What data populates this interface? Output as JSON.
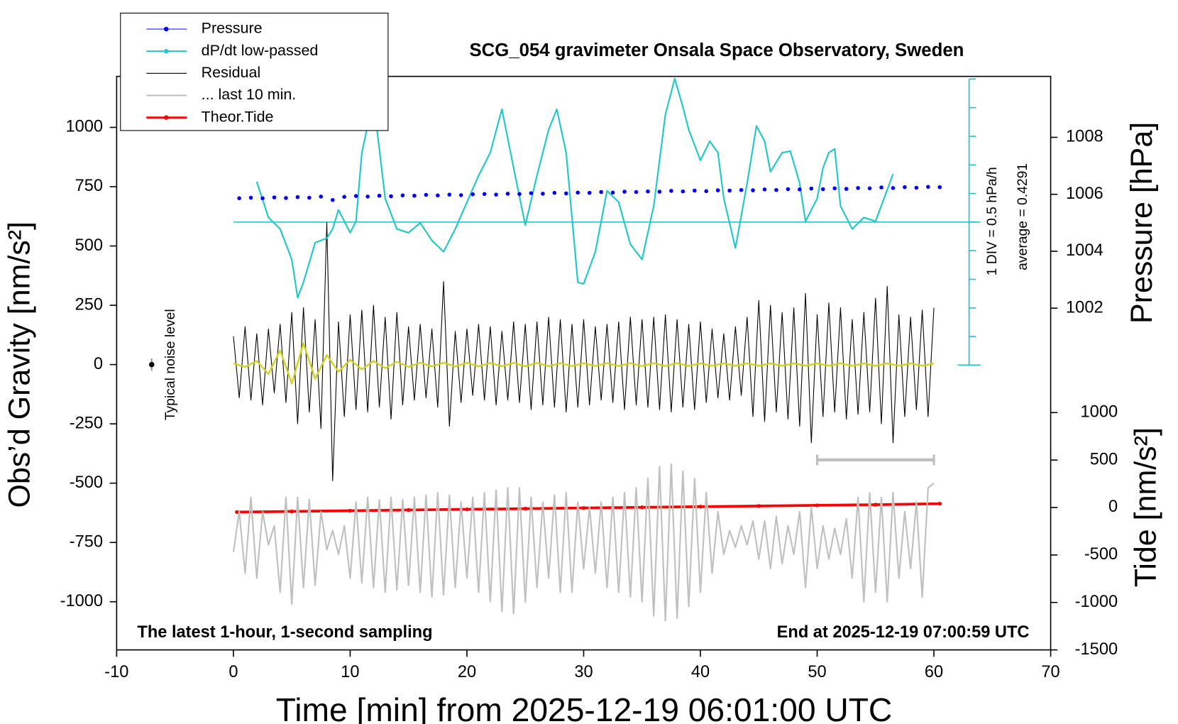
{
  "chart_data": {
    "type": "line",
    "title": "SCG_054 gravimeter Onsala Space Observatory, Sweden",
    "xlabel": "Time [min] from 2025-12-19 06:01:00 UTC",
    "ylabel": "Obs’d Gravity [nm/s²]",
    "y2label": "Pressure [hPa]",
    "y3label": "Tide [nm/s²]",
    "footer_left": "The latest 1-hour, 1-second sampling",
    "footer_right": "End at 2025-12-19 07:00:59 UTC",
    "xlim": [
      -10,
      70
    ],
    "xticks": [
      -10,
      0,
      10,
      20,
      30,
      40,
      50,
      60,
      70
    ],
    "ylim": [
      -1203,
      1215
    ],
    "yticks": [
      -1000,
      -750,
      -500,
      -250,
      0,
      250,
      500,
      750,
      1000
    ],
    "y2lim": [
      990,
      1010.14
    ],
    "y2ticks": [
      1002,
      1004,
      1006,
      1008
    ],
    "y3lim": [
      -1500,
      4542
    ],
    "y3ticks": [
      -1500,
      -1000,
      -500,
      0,
      500,
      1000
    ],
    "y4lim": [
      -7.05,
      2.976
    ],
    "y4ticks": [
      -2.0709,
      -1.5709,
      -1.0709,
      -0.5709,
      -0.0709,
      0.4291,
      0.9291,
      1.4291,
      1.9291,
      2.4291,
      2.9291
    ],
    "y4_color": "#20c0c0",
    "average": 0.4291,
    "average_label": "average = 0.4291",
    "div_label": "1 DIV = 0.5 hPa/h",
    "noise_level": {
      "label": "Typical noise level",
      "x": -7,
      "value": 0,
      "error": 26
    },
    "scale_bar": {
      "x": [
        50,
        60
      ],
      "value": -402,
      "color": "#c0c0c0"
    },
    "legend": "upper left",
    "series": [
      {
        "name": "Pressure",
        "color": "#0000ff",
        "style": "points",
        "marker": true,
        "axis": "y2",
        "x": [
          0.5,
          1.5,
          2.5,
          3.5,
          4.5,
          5.5,
          6.5,
          7.5,
          8.5,
          9.5,
          10.5,
          11.5,
          12.5,
          13.5,
          14.5,
          15.5,
          16.5,
          17.5,
          18.5,
          19.5,
          20.5,
          21.5,
          22.5,
          23.5,
          24.5,
          25.5,
          26.5,
          27.5,
          28.5,
          29.5,
          30.5,
          31.5,
          32.5,
          33.5,
          34.5,
          35.5,
          36.5,
          37.5,
          38.5,
          39.5,
          40.5,
          41.5,
          42.5,
          43.5,
          44.5,
          45.5,
          46.5,
          47.5,
          48.5,
          49.5,
          50.5,
          51.5,
          52.5,
          53.5,
          54.5,
          55.5,
          56.5,
          57.5,
          58.5,
          59.5,
          60.5
        ],
        "values": [
          1005.86,
          1005.88,
          1005.86,
          1005.89,
          1005.87,
          1005.9,
          1005.88,
          1005.92,
          1005.8,
          1005.91,
          1005.94,
          1005.92,
          1005.95,
          1005.93,
          1005.96,
          1005.95,
          1005.98,
          1005.96,
          1005.99,
          1005.97,
          1006.0,
          1006.01,
          1005.99,
          1006.02,
          1006.01,
          1006.04,
          1006.02,
          1006.05,
          1006.03,
          1006.06,
          1006.05,
          1006.08,
          1006.06,
          1006.09,
          1006.08,
          1006.1,
          1006.09,
          1006.12,
          1006.1,
          1006.13,
          1006.11,
          1006.14,
          1006.13,
          1006.15,
          1006.14,
          1006.17,
          1006.15,
          1006.18,
          1006.17,
          1006.2,
          1006.18,
          1006.21,
          1006.19,
          1006.22,
          1006.21,
          1006.24,
          1006.22,
          1006.25,
          1006.23,
          1006.26,
          1006.25
        ]
      },
      {
        "name": "dP/dt low-passed",
        "color": "#20c8c8",
        "style": "line",
        "marker": true,
        "axis": "y4",
        "x": [
          2,
          3,
          4,
          5,
          5.5,
          6,
          7,
          8,
          8.5,
          9,
          10,
          10.5,
          11,
          11.7,
          12.3,
          13,
          14,
          15,
          16,
          17,
          18,
          19,
          20,
          21,
          22,
          23,
          24,
          25,
          26,
          27,
          27.7,
          28.5,
          29.5,
          30,
          31,
          32,
          33,
          34,
          35,
          36,
          37,
          37.8,
          38.5,
          39,
          40,
          40.8,
          41.5,
          42,
          43,
          44,
          44.8,
          45.5,
          46,
          47,
          47.7,
          48.5,
          49,
          50,
          50.5,
          51,
          51.5,
          52,
          53,
          54,
          55,
          56.5
        ],
        "values": [
          1.136,
          0.509,
          0.309,
          -0.224,
          -0.891,
          -0.624,
          0.069,
          0.149,
          0.309,
          0.642,
          0.242,
          0.442,
          1.642,
          2.309,
          2.042,
          0.842,
          0.309,
          0.242,
          0.416,
          0.109,
          -0.091,
          0.309,
          0.776,
          1.242,
          1.642,
          2.402,
          1.376,
          0.376,
          1.242,
          2.042,
          2.402,
          1.642,
          -0.624,
          -0.651,
          -0.091,
          0.976,
          0.776,
          0.042,
          -0.224,
          0.709,
          2.309,
          2.936,
          2.442,
          2.042,
          1.509,
          1.842,
          1.642,
          0.842,
          -0.024,
          1.109,
          2.109,
          1.842,
          1.309,
          1.642,
          1.669,
          1.109,
          0.442,
          0.842,
          1.376,
          1.642,
          1.709,
          0.709,
          0.309,
          0.509,
          0.442,
          1.269
        ]
      },
      {
        "name": "Residual",
        "color": "#000000",
        "style": "line",
        "marker": false,
        "axis": "y",
        "x": [
          0,
          0.5,
          1,
          1.5,
          2,
          2.5,
          3,
          3.5,
          4,
          4.5,
          5,
          5.5,
          6,
          6.5,
          7,
          7.5,
          8,
          8.5,
          9,
          9.5,
          10,
          10.5,
          11,
          11.5,
          12,
          12.5,
          13,
          13.5,
          14,
          14.5,
          15,
          15.5,
          16,
          16.5,
          17,
          17.5,
          18,
          18.5,
          19,
          19.5,
          20,
          20.5,
          21,
          21.5,
          22,
          22.5,
          23,
          23.5,
          24,
          24.5,
          25,
          25.5,
          26,
          26.5,
          27,
          27.5,
          28,
          28.5,
          29,
          29.5,
          30,
          30.5,
          31,
          31.5,
          32,
          32.5,
          33,
          33.5,
          34,
          34.5,
          35,
          35.5,
          36,
          36.5,
          37,
          37.5,
          38,
          38.5,
          39,
          39.5,
          40,
          40.5,
          41,
          41.5,
          42,
          42.5,
          43,
          43.5,
          44,
          44.5,
          45,
          45.5,
          46,
          46.5,
          47,
          47.5,
          48,
          48.5,
          49,
          49.5,
          50,
          50.5,
          51,
          51.5,
          52,
          52.5,
          53,
          53.5,
          54,
          54.5,
          55,
          55.5,
          56,
          56.5,
          57,
          57.5,
          58,
          58.5,
          59,
          59.5,
          60
        ],
        "values": [
          120,
          -140,
          160,
          -150,
          130,
          -170,
          150,
          -120,
          170,
          -160,
          220,
          -250,
          240,
          -200,
          190,
          -270,
          600,
          -490,
          180,
          -220,
          210,
          -190,
          230,
          -200,
          250,
          -180,
          200,
          -230,
          220,
          -170,
          160,
          -150,
          170,
          -140,
          150,
          -180,
          350,
          -260,
          140,
          -160,
          150,
          -130,
          170,
          -150,
          160,
          -170,
          140,
          -150,
          180,
          -160,
          170,
          -190,
          180,
          -170,
          200,
          -180,
          190,
          -200,
          170,
          -180,
          190,
          -170,
          160,
          -150,
          170,
          -160,
          180,
          -190,
          200,
          -170,
          190,
          -180,
          200,
          -190,
          210,
          -200,
          190,
          -180,
          170,
          -190,
          180,
          -160,
          150,
          -140,
          130,
          -150,
          160,
          -130,
          200,
          -220,
          270,
          -240,
          250,
          -200,
          220,
          -230,
          240,
          -260,
          300,
          -330,
          210,
          -220,
          260,
          -200,
          240,
          -230,
          190,
          -210,
          220,
          -200,
          280,
          -250,
          330,
          -330,
          210,
          -220,
          200,
          -190,
          230,
          -220,
          240
        ]
      },
      {
        "name": "... last 10 min.",
        "color": "#c0c0c0",
        "style": "line",
        "marker": false,
        "axis": "y",
        "x": [
          0,
          0.5,
          1,
          1.5,
          2,
          2.5,
          3,
          3.5,
          4,
          4.5,
          5,
          5.5,
          6,
          6.5,
          7,
          7.5,
          8,
          8.5,
          9,
          9.5,
          10,
          10.5,
          11,
          11.5,
          12,
          12.5,
          13,
          13.5,
          14,
          14.5,
          15,
          15.5,
          16,
          16.5,
          17,
          17.5,
          18,
          18.5,
          19,
          19.5,
          20,
          20.5,
          21,
          21.5,
          22,
          22.5,
          23,
          23.5,
          24,
          24.5,
          25,
          25.5,
          26,
          26.5,
          27,
          27.5,
          28,
          28.5,
          29,
          29.5,
          30,
          30.5,
          31,
          31.5,
          32,
          32.5,
          33,
          33.5,
          34,
          34.5,
          35,
          35.5,
          36,
          36.5,
          37,
          37.5,
          38,
          38.5,
          39,
          39.5,
          40,
          40.5,
          41,
          41.5,
          42,
          42.5,
          43,
          43.5,
          44,
          44.5,
          45,
          45.5,
          46,
          46.5,
          47,
          47.5,
          48,
          48.5,
          49,
          49.5,
          50,
          50.5,
          51,
          51.5,
          52,
          52.5,
          53,
          53.5,
          54,
          54.5,
          55,
          55.5,
          56,
          56.5,
          57,
          57.5,
          58,
          58.5,
          59,
          59.5,
          60
        ],
        "values": [
          -790,
          -620,
          -880,
          -560,
          -900,
          -620,
          -760,
          -680,
          -960,
          -560,
          -1010,
          -560,
          -940,
          -570,
          -930,
          -620,
          -780,
          -700,
          -800,
          -680,
          -900,
          -580,
          -920,
          -560,
          -940,
          -570,
          -960,
          -560,
          -950,
          -570,
          -930,
          -560,
          -960,
          -550,
          -980,
          -540,
          -970,
          -550,
          -940,
          -580,
          -900,
          -560,
          -960,
          -540,
          -1000,
          -530,
          -1040,
          -520,
          -1050,
          -520,
          -1000,
          -560,
          -940,
          -580,
          -900,
          -550,
          -960,
          -540,
          -960,
          -580,
          -860,
          -600,
          -880,
          -580,
          -940,
          -560,
          -960,
          -540,
          -980,
          -520,
          -1000,
          -480,
          -1060,
          -430,
          -1080,
          -420,
          -1070,
          -450,
          -1020,
          -480,
          -960,
          -540,
          -880,
          -620,
          -800,
          -700,
          -770,
          -680,
          -760,
          -660,
          -820,
          -660,
          -860,
          -640,
          -840,
          -680,
          -800,
          -620,
          -940,
          -600,
          -860,
          -680,
          -820,
          -690,
          -800,
          -650,
          -900,
          -560,
          -1000,
          -540,
          -960,
          -560,
          -1000,
          -540,
          -900,
          -620,
          -860,
          -580,
          -980,
          -520,
          -500
        ]
      },
      {
        "name": "Theor.Tide",
        "color": "#ff0000",
        "style": "line",
        "marker": true,
        "axis": "y3",
        "x": [
          0.3,
          5,
          10,
          15,
          20,
          25,
          30,
          35,
          40,
          45,
          50,
          55,
          60.5
        ],
        "values": [
          -48,
          -41,
          -34,
          -26,
          -19,
          -12,
          -5,
          2,
          9,
          16,
          23,
          30,
          40
        ]
      },
      {
        "color": "#d4d020",
        "style": "line",
        "marker": false,
        "axis": "y",
        "x": [
          0,
          1,
          2,
          3,
          4,
          5,
          6,
          7,
          8,
          9,
          10,
          11,
          12,
          13,
          14,
          15,
          16,
          17,
          18,
          19,
          20,
          21,
          22,
          23,
          24,
          25,
          26,
          27,
          28,
          29,
          30,
          31,
          32,
          33,
          34,
          35,
          36,
          37,
          38,
          39,
          40,
          41,
          42,
          43,
          44,
          45,
          46,
          47,
          48,
          49,
          50,
          51,
          52,
          53,
          54,
          55,
          56,
          57,
          58,
          59,
          60
        ],
        "values": [
          5,
          -10,
          15,
          -40,
          60,
          -80,
          90,
          -60,
          40,
          -30,
          20,
          -20,
          15,
          -15,
          12,
          -10,
          8,
          -8,
          8,
          -8,
          8,
          -8,
          7,
          -7,
          7,
          -7,
          7,
          -7,
          6,
          -6,
          6,
          -6,
          6,
          -6,
          6,
          -6,
          6,
          -6,
          6,
          -6,
          5,
          -5,
          5,
          -5,
          5,
          -5,
          5,
          -5,
          5,
          -5,
          5,
          -5,
          5,
          -5,
          5,
          -5,
          5,
          -5,
          5,
          -5,
          5
        ]
      }
    ]
  }
}
